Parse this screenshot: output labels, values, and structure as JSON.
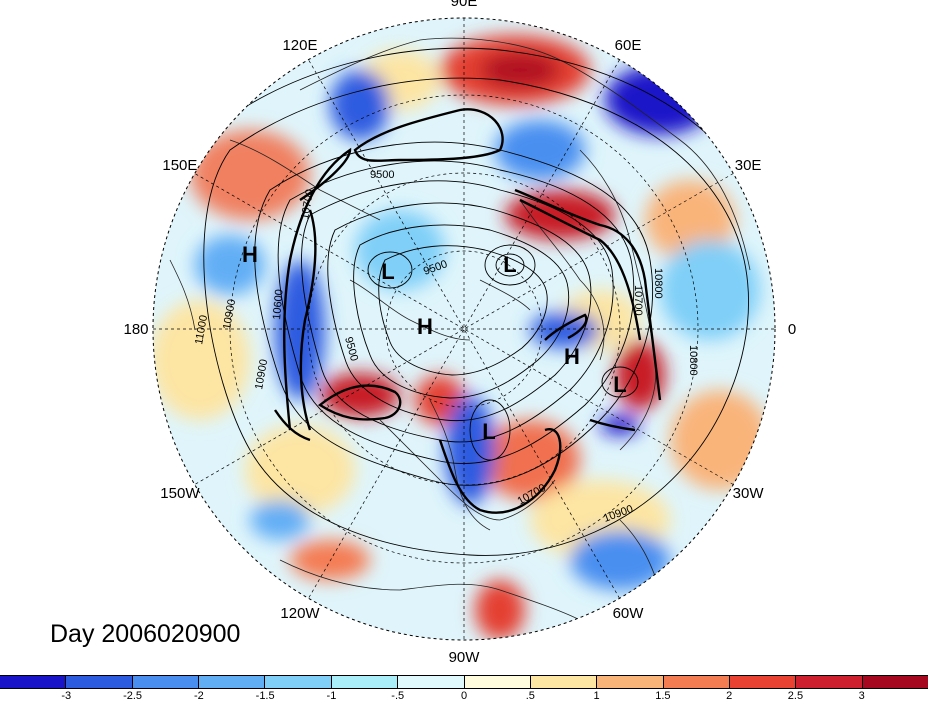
{
  "map": {
    "projection": "north-polar-stereographic",
    "longitude_labels": [
      {
        "text": "90E",
        "lon": 90
      },
      {
        "text": "60E",
        "lon": 60
      },
      {
        "text": "30E",
        "lon": 30
      },
      {
        "text": "0",
        "lon": 0
      },
      {
        "text": "30W",
        "lon": -30
      },
      {
        "text": "60W",
        "lon": -60
      },
      {
        "text": "90W",
        "lon": -90
      },
      {
        "text": "120W",
        "lon": -120
      },
      {
        "text": "150W",
        "lon": -150
      },
      {
        "text": "180",
        "lon": 180
      },
      {
        "text": "150E",
        "lon": 150
      },
      {
        "text": "120E",
        "lon": 120
      }
    ],
    "pressure_centers": [
      "H",
      "L",
      "L",
      "H",
      "H",
      "L",
      "L"
    ],
    "contour_labels": [
      "9500",
      "9500",
      "9500",
      "10900",
      "10900",
      "11000",
      "10800",
      "10800",
      "10700",
      "10700",
      "10700",
      "10600",
      "10900"
    ],
    "field_colors": {
      "negative": "#1010c8",
      "positive": "#b01020",
      "neutral": "#ffffff"
    }
  },
  "title": {
    "day_label": "Day 2006020900"
  },
  "colorbar": {
    "colors": [
      "#1a14c9",
      "#2d5be0",
      "#4a8ff0",
      "#62aef5",
      "#7fcff8",
      "#aaeefa",
      "#dff9fc",
      "#fffbdd",
      "#fde5a3",
      "#f9b47a",
      "#f47c52",
      "#ea4232",
      "#cd1f2d",
      "#a5081f"
    ],
    "tick_labels": [
      "-3",
      "-2.5",
      "-2",
      "-1.5",
      "-1",
      "-.5",
      "0",
      ".5",
      "1",
      "1.5",
      "2",
      "2.5",
      "3"
    ]
  }
}
